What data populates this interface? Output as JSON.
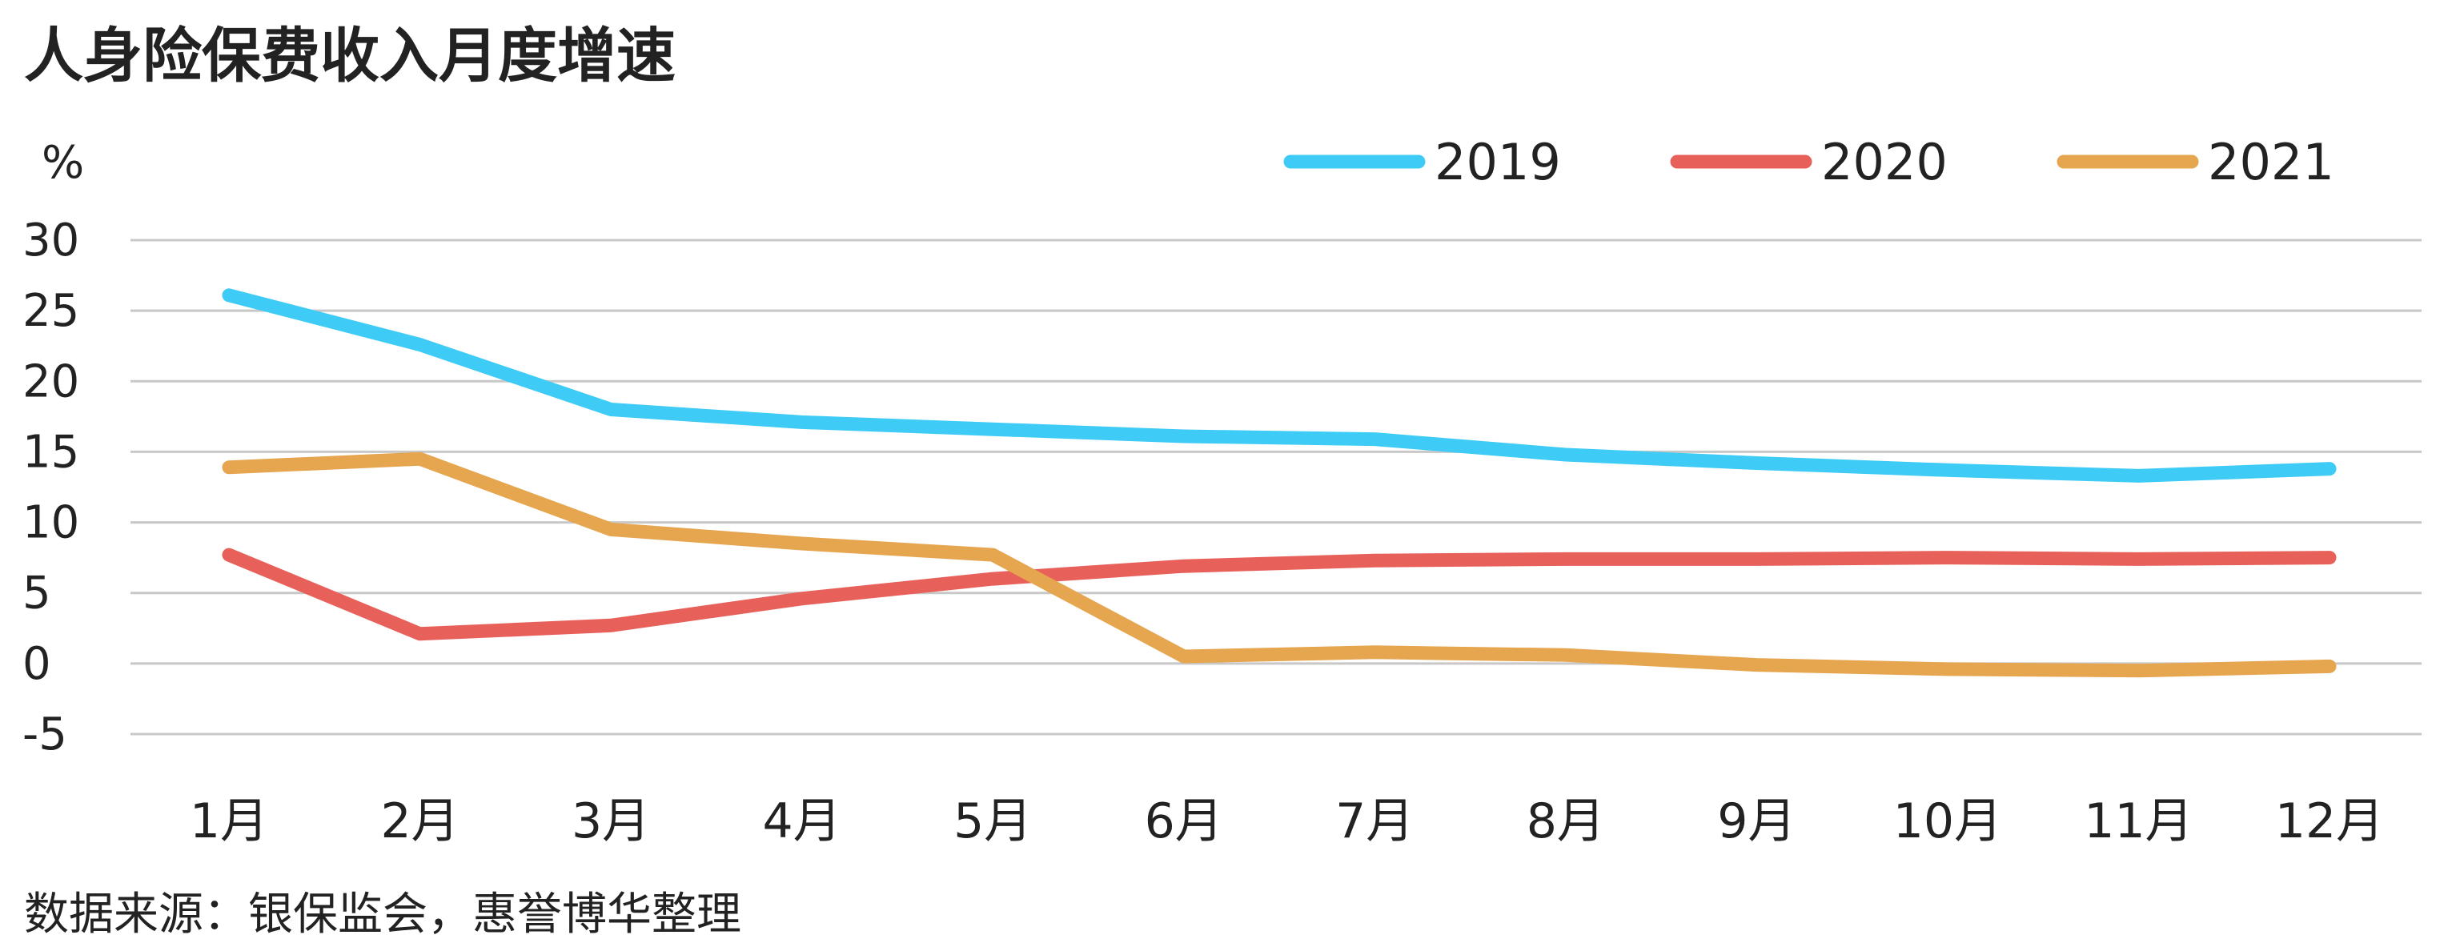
{
  "title": "人身险保费收入月度增速",
  "source": "数据来源：银保监会，惠誉博华整理",
  "chart_data": {
    "type": "line",
    "title": "人身险保费收入月度增速",
    "ylabel": "%",
    "xlabel": "",
    "ylim": [
      -5,
      30
    ],
    "yticks": [
      30,
      25,
      20,
      15,
      10,
      5,
      0,
      -5
    ],
    "categories": [
      "1月",
      "2月",
      "3月",
      "4月",
      "5月",
      "6月",
      "7月",
      "8月",
      "9月",
      "10月",
      "11月",
      "12月"
    ],
    "grid": true,
    "legend_position": "top-right",
    "series": [
      {
        "name": "2019",
        "color": "#3ECBF5",
        "values": [
          26.1,
          22.6,
          18.0,
          17.1,
          16.6,
          16.1,
          15.9,
          14.8,
          14.2,
          13.7,
          13.3,
          13.8
        ]
      },
      {
        "name": "2020",
        "color": "#E8605A",
        "values": [
          7.7,
          2.1,
          2.7,
          4.6,
          6.0,
          6.9,
          7.3,
          7.4,
          7.4,
          7.5,
          7.4,
          7.5
        ]
      },
      {
        "name": "2021",
        "color": "#E6A54F",
        "values": [
          13.9,
          14.5,
          9.5,
          8.5,
          7.7,
          0.5,
          0.8,
          0.6,
          -0.1,
          -0.4,
          -0.5,
          -0.2
        ]
      }
    ]
  }
}
